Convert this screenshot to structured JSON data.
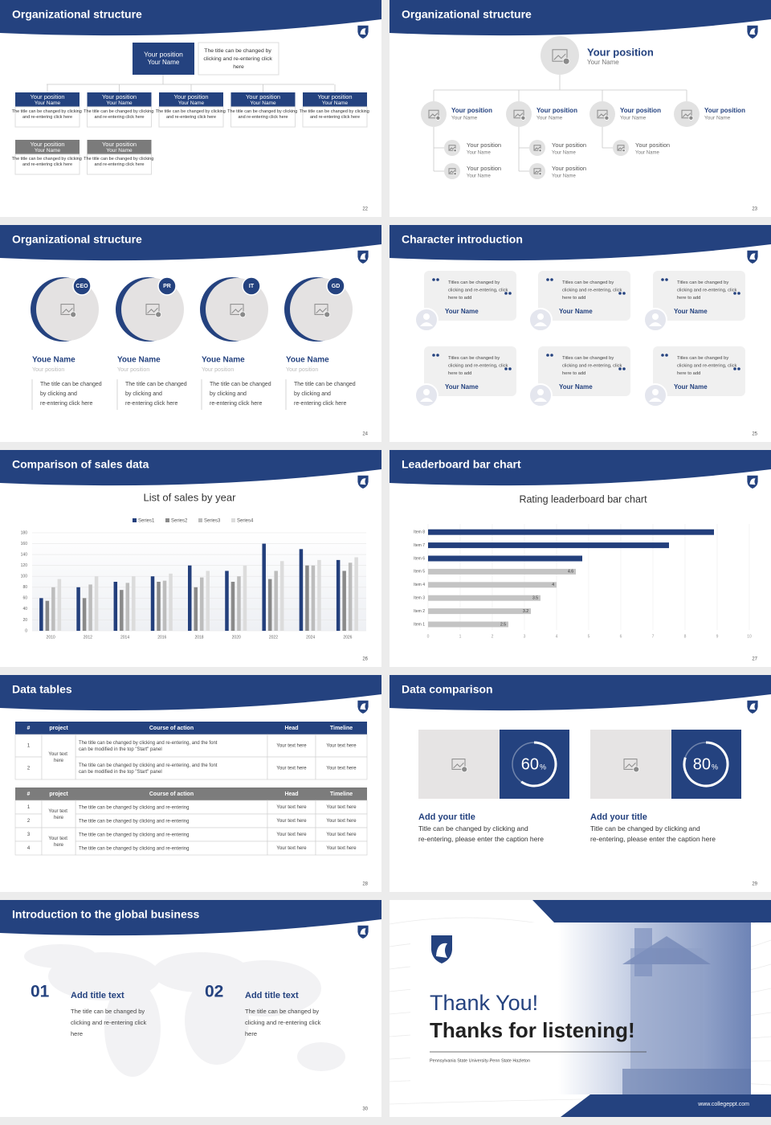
{
  "slides": [
    {
      "title": "Organizational structure",
      "page": "22",
      "top": {
        "position": "Your position",
        "name": "Your Name",
        "description": "The title can be changed by clicking and re-entering click here"
      },
      "rows": [
        [
          {
            "position": "Your position",
            "name": "Your Name",
            "description": "The title can be changed by clicking and re-entering click here"
          },
          {
            "position": "Your position",
            "name": "Your Name",
            "description": "The title can be changed by clicking and re-entering click here"
          },
          {
            "position": "Your position",
            "name": "Your Name",
            "description": "The title can be changed by clicking and re-entering click here"
          },
          {
            "position": "Your position",
            "name": "Your Name",
            "description": "The title can be changed by clicking and re-entering click here"
          },
          {
            "position": "Your position",
            "name": "Your Name",
            "description": "The title can be changed by clicking and re-entering click here"
          }
        ],
        [
          {
            "position": "Your position",
            "name": "Your Name",
            "description": "The title can be changed by clicking and re-entering click here"
          },
          {
            "position": "Your position",
            "name": "Your Name",
            "description": "The title can be changed by clicking and re-entering click here"
          }
        ]
      ]
    },
    {
      "title": "Organizational structure",
      "page": "23",
      "top": {
        "position": "Your position",
        "name": "Your Name"
      },
      "groups": [
        {
          "head": {
            "position": "Your position",
            "name": "Your Name"
          },
          "members": [
            {
              "position": "Your position",
              "name": "Your Name"
            },
            {
              "position": "Your position",
              "name": "Your Name"
            }
          ]
        },
        {
          "head": {
            "position": "Your position",
            "name": "Your Name"
          },
          "members": [
            {
              "position": "Your position",
              "name": "Your Name"
            },
            {
              "position": "Your position",
              "name": "Your Name"
            }
          ]
        },
        {
          "head": {
            "position": "Your position",
            "name": "Your Name"
          },
          "members": [
            {
              "position": "Your position",
              "name": "Your Name"
            }
          ]
        },
        {
          "head": {
            "position": "Your position",
            "name": "Your Name"
          },
          "members": []
        }
      ]
    },
    {
      "title": "Organizational structure",
      "page": "24",
      "members": [
        {
          "badge": "CEO",
          "name": "Youe Name",
          "position": "Your position",
          "description": "The title can be changed by clicking and re-entering click here"
        },
        {
          "badge": "PR",
          "name": "Youe Name",
          "position": "Your position",
          "description": "The title can be changed by clicking and re-entering click here"
        },
        {
          "badge": "IT",
          "name": "Youe Name",
          "position": "Your position",
          "description": "The title can be changed by clicking and re-entering click here"
        },
        {
          "badge": "GD",
          "name": "Youe Name",
          "position": "Your position",
          "description": "The title can be changed by clicking and re-entering click here"
        }
      ]
    },
    {
      "title": "Character introduction",
      "page": "25",
      "cards": [
        {
          "quote": "Titles can be changed by clicking and re-entering, click here to add",
          "name": "Your Name"
        },
        {
          "quote": "Titles can be changed by clicking and re-entering, click here to add",
          "name": "Your Name"
        },
        {
          "quote": "Titles can be changed by clicking and re-entering, click here to add",
          "name": "Your Name"
        },
        {
          "quote": "Titles can be changed by clicking and re-entering, click here to add",
          "name": "Your Name"
        },
        {
          "quote": "Titles can be changed by clicking and re-entering, click here to add",
          "name": "Your Name"
        },
        {
          "quote": "Titles can be changed by clicking and re-entering, click here to add",
          "name": "Your Name"
        }
      ]
    },
    {
      "title": "Comparison of sales data",
      "page": "26",
      "chart": {
        "type": "bar",
        "title": "List of sales by year",
        "categories": [
          "2010",
          "2012",
          "2014",
          "2016",
          "2018",
          "2020",
          "2022",
          "2024",
          "2026"
        ],
        "series": [
          {
            "name": "Series1",
            "color": "#233f7c",
            "values": [
              60,
              80,
              90,
              100,
              120,
              110,
              160,
              150,
              130
            ]
          },
          {
            "name": "Series2",
            "color": "#8a8a8a",
            "values": [
              55,
              60,
              75,
              90,
              80,
              90,
              95,
              120,
              110
            ]
          },
          {
            "name": "Series3",
            "color": "#bdbdbd",
            "values": [
              80,
              85,
              88,
              92,
              98,
              100,
              110,
              120,
              125
            ]
          },
          {
            "name": "Series4",
            "color": "#dcdcdc",
            "values": [
              95,
              100,
              100,
              105,
              110,
              120,
              128,
              130,
              135
            ]
          }
        ],
        "ylim": [
          0,
          180
        ],
        "yticks": [
          0,
          20,
          40,
          60,
          80,
          100,
          120,
          140,
          160,
          180
        ],
        "grid": true
      }
    },
    {
      "title": "Leaderboard bar chart",
      "page": "27",
      "chart": {
        "type": "bar",
        "orientation": "horizontal",
        "title": "Rating leaderboard bar chart",
        "categories": [
          "Item 1",
          "Item 2",
          "Item 3",
          "Item 4",
          "Item 5",
          "Item 6",
          "Item 7",
          "Item 8"
        ],
        "values": [
          2.5,
          3.2,
          3.5,
          4,
          4.6,
          4.8,
          7.5,
          8.9
        ],
        "value_labels": [
          "2.5",
          "3.2",
          "3.5",
          "4",
          "4.6",
          null,
          null,
          null
        ],
        "colors": [
          "#c4c4c4",
          "#c4c4c4",
          "#c4c4c4",
          "#c4c4c4",
          "#c4c4c4",
          "#233f7c",
          "#233f7c",
          "#233f7c"
        ],
        "xlim": [
          0,
          10
        ],
        "xticks": [
          0,
          1,
          2,
          3,
          4,
          5,
          6,
          7,
          8,
          9,
          10
        ],
        "grid": true
      }
    },
    {
      "title": "Data tables",
      "page": "28",
      "tables": [
        {
          "header_color": "#24427f",
          "header": [
            "#",
            "project",
            "Course of action",
            "Head",
            "Timeline"
          ],
          "groups": [
            {
              "project": "Your text here",
              "rows": [
                {
                  "number": "1",
                  "action": "The title can be changed by clicking and re-entering, and the font can be modified in the top \"Start\" panel",
                  "head": "Your text here",
                  "timeline": "Your text here"
                },
                {
                  "number": "2",
                  "action": "The title can be changed by clicking and re-entering, and the font can be modified in the top \"Start\" panel",
                  "head": "Your text here",
                  "timeline": "Your text here"
                }
              ]
            }
          ]
        },
        {
          "header_color": "#7c7c7c",
          "header": [
            "#",
            "project",
            "Course of action",
            "Head",
            "Timeline"
          ],
          "groups": [
            {
              "project": "Your text here",
              "rows": [
                {
                  "number": "1",
                  "action": "The title can be changed by clicking and re-entering",
                  "head": "Your text here",
                  "timeline": "Your text here"
                },
                {
                  "number": "2",
                  "action": "The title can be changed by clicking and re-entering",
                  "head": "Your text here",
                  "timeline": "Your text here"
                }
              ]
            },
            {
              "project": "Your text here",
              "rows": [
                {
                  "number": "3",
                  "action": "The title can be changed by clicking and re-entering",
                  "head": "Your text here",
                  "timeline": "Your text here"
                },
                {
                  "number": "4",
                  "action": "The title can be changed by clicking and re-entering",
                  "head": "Your text here",
                  "timeline": "Your text here"
                }
              ]
            }
          ]
        }
      ]
    },
    {
      "title": "Data comparison",
      "page": "29",
      "items": [
        {
          "value": 60,
          "unit": "%",
          "title": "Add your title",
          "description": "Title can be changed by clicking and re-entering, please enter the caption here"
        },
        {
          "value": 80,
          "unit": "%",
          "title": "Add your title",
          "description": "Title can be changed by clicking and re-entering, please enter the caption here"
        }
      ]
    },
    {
      "title": "Introduction to the global business",
      "page": "30",
      "items": [
        {
          "number": "01",
          "title": "Add title text",
          "description": "The title can be changed by clicking and re-entering click here"
        },
        {
          "number": "02",
          "title": "Add title text",
          "description": "The title can be changed by clicking and re-entering click here"
        }
      ]
    },
    {
      "heading": "Thank You!",
      "subheading": "Thanks for listening!",
      "school": "Pennsylvania State University-Penn State Hazleton",
      "website": "www.collegeppt.com"
    }
  ]
}
